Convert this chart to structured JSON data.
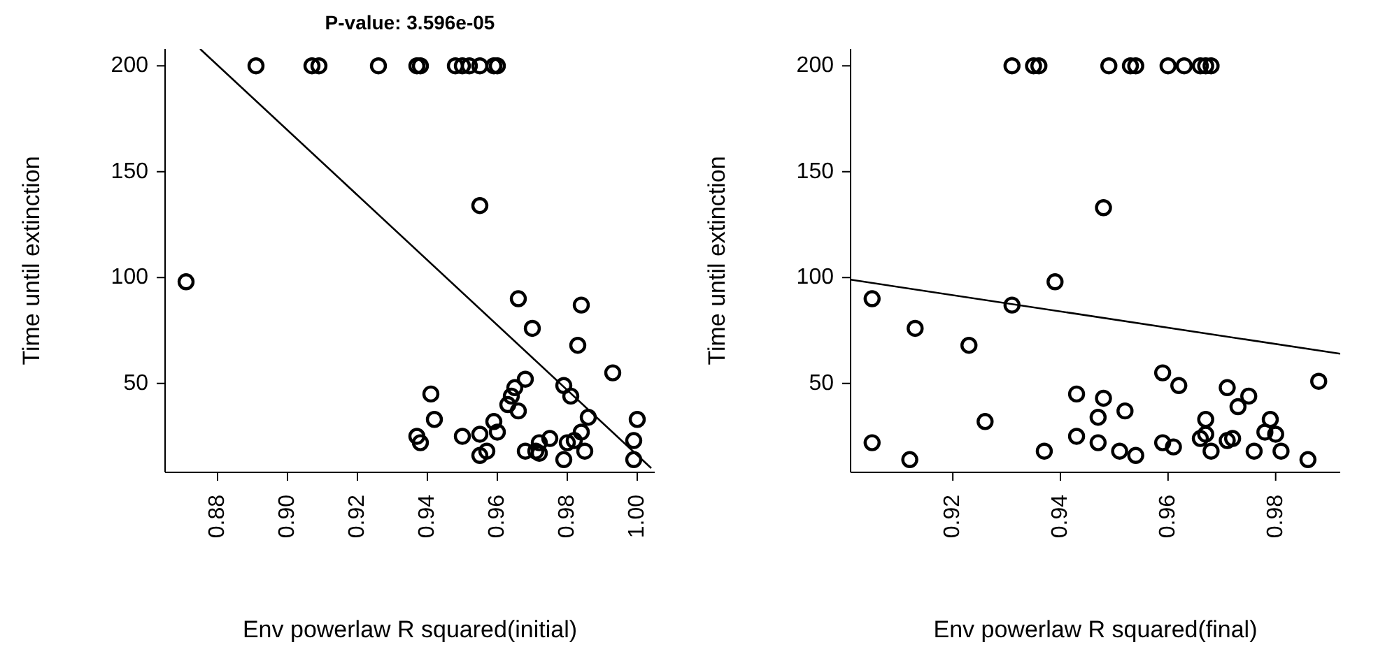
{
  "chart_data": [
    {
      "type": "scatter",
      "title": "P-value: 3.596e-05",
      "xlabel": "Env powerlaw R squared(initial)",
      "ylabel": "Time until extinction",
      "xlim": [
        0.865,
        1.005
      ],
      "ylim": [
        8,
        208
      ],
      "xticks": [
        0.88,
        {
          "value": 0.9,
          "label": "0.90"
        },
        0.92,
        0.94,
        0.96,
        0.98,
        {
          "value": 1.0,
          "label": "1.00"
        }
      ],
      "yticks": [
        50,
        100,
        150,
        200
      ],
      "series": [
        {
          "color": "#000000",
          "marker": "circle",
          "x": [
            0.891,
            0.907,
            0.909,
            0.926,
            0.937,
            0.938,
            0.948,
            0.95,
            0.952,
            0.955,
            0.959,
            0.96,
            0.955,
            0.871,
            0.966,
            0.984,
            0.97,
            0.983,
            0.993,
            0.968,
            0.979,
            0.965,
            0.981,
            0.941,
            0.964,
            0.963,
            0.966,
            0.986,
            1.0,
            0.942,
            0.959,
            0.96,
            0.937,
            0.938,
            0.95,
            0.955,
            0.984,
            0.999,
            0.957,
            0.955,
            0.968,
            0.971,
            0.972,
            0.975,
            0.98,
            0.982,
            0.985,
            0.979,
            0.999,
            0.972
          ],
          "values": [
            200,
            200,
            200,
            200,
            200,
            200,
            200,
            200,
            200,
            200,
            200,
            200,
            134,
            98,
            90,
            87,
            76,
            68,
            55,
            52,
            49,
            48,
            44,
            45,
            44,
            40,
            37,
            34,
            33,
            33,
            32,
            27,
            25,
            22,
            25,
            26,
            27,
            23,
            18,
            16,
            18,
            18,
            22,
            24,
            22,
            23,
            18,
            14,
            14,
            17
          ]
        },
        {
          "type": "line",
          "color": "#000000",
          "marker": "none",
          "x": [
            0.875,
            1.004
          ],
          "values": [
            208,
            10
          ]
        }
      ]
    },
    {
      "type": "scatter",
      "xlabel": "Env powerlaw R squared(final)",
      "ylabel": "Time until extinction",
      "xlim": [
        0.901,
        0.992
      ],
      "ylim": [
        8,
        208
      ],
      "xticks": [
        0.92,
        0.94,
        0.96,
        0.98
      ],
      "yticks": [
        50,
        100,
        150,
        200
      ],
      "series": [
        {
          "color": "#000000",
          "marker": "circle",
          "x": [
            0.931,
            0.935,
            0.936,
            0.949,
            0.953,
            0.954,
            0.96,
            0.963,
            0.966,
            0.967,
            0.968,
            0.948,
            0.905,
            0.939,
            0.931,
            0.913,
            0.923,
            0.959,
            0.962,
            0.988,
            0.971,
            0.943,
            0.975,
            0.948,
            0.973,
            0.952,
            0.947,
            0.967,
            0.979,
            0.926,
            0.967,
            0.966,
            0.978,
            0.98,
            0.943,
            0.971,
            0.972,
            0.905,
            0.947,
            0.959,
            0.961,
            0.937,
            0.951,
            0.954,
            0.968,
            0.976,
            0.981,
            0.912,
            0.986
          ],
          "values": [
            200,
            200,
            200,
            200,
            200,
            200,
            200,
            200,
            200,
            200,
            200,
            133,
            90,
            98,
            87,
            76,
            68,
            55,
            49,
            51,
            48,
            45,
            44,
            43,
            39,
            37,
            34,
            33,
            33,
            32,
            26,
            24,
            27,
            26,
            25,
            23,
            24,
            22,
            22,
            22,
            20,
            18,
            18,
            16,
            18,
            18,
            18,
            14,
            14
          ]
        },
        {
          "type": "line",
          "color": "#000000",
          "marker": "none",
          "x": [
            0.901,
            0.992
          ],
          "values": [
            99,
            64
          ]
        }
      ]
    }
  ]
}
